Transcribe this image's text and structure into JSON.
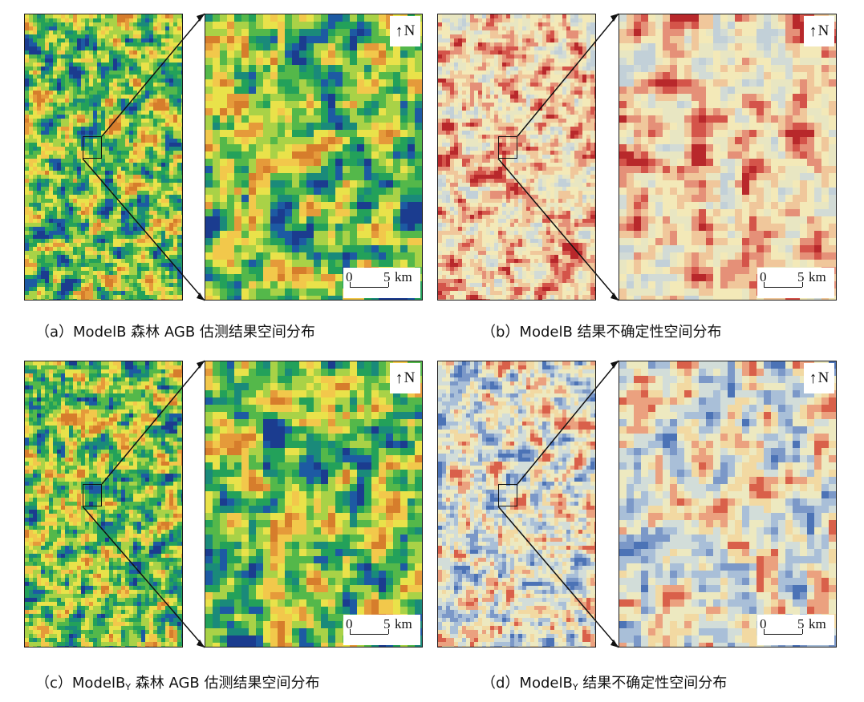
{
  "palettes": {
    "agb": [
      "#d67d2c",
      "#e59a3a",
      "#f2c84b",
      "#e9e24a",
      "#a9d247",
      "#54b84a",
      "#23a15a",
      "#1a8a7a",
      "#1d5aa3",
      "#1b3c8f"
    ],
    "unc_b": [
      "#c2d0d8",
      "#d2dbd6",
      "#e8e6c2",
      "#f3e9b8",
      "#f0c79b",
      "#e59078",
      "#d4544a",
      "#b8282b"
    ],
    "unc_by": [
      "#4c73b6",
      "#7b98c8",
      "#a9bfd8",
      "#d2ddd9",
      "#ede9c0",
      "#f2d9a2",
      "#eba17f",
      "#d9604a"
    ]
  },
  "panels": [
    {
      "caption_prefix": "（a）ModelB",
      "caption_sub": "",
      "caption_suffix": " 森林 AGB 估测结果空间分布",
      "palette": "agb",
      "north_label": "N",
      "scale": {
        "zero": "0",
        "five": "5",
        "unit": "km"
      }
    },
    {
      "caption_prefix": "（b）ModelB",
      "caption_sub": "",
      "caption_suffix": " 结果不确定性空间分布",
      "palette": "unc_b",
      "north_label": "N",
      "scale": {
        "zero": "0",
        "five": "5",
        "unit": "km"
      }
    },
    {
      "caption_prefix": "（c）ModelB",
      "caption_sub": "Y",
      "caption_suffix": " 森林 AGB 估测结果空间分布",
      "palette": "agb",
      "north_label": "N",
      "scale": {
        "zero": "0",
        "five": "5",
        "unit": "km"
      }
    },
    {
      "caption_prefix": "（d）ModelB",
      "caption_sub": "Y",
      "caption_suffix": " 结果不确定性空间分布",
      "palette": "unc_by",
      "north_label": "N",
      "scale": {
        "zero": "0",
        "five": "5",
        "unit": "km"
      }
    }
  ]
}
